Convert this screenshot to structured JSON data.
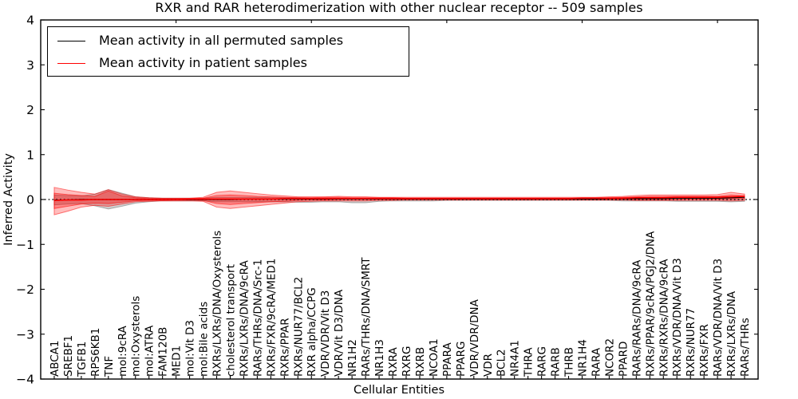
{
  "chart_data": {
    "type": "line",
    "title": "RXR and RAR heterodimerization with other nuclear receptor -- 509 samples",
    "xlabel": "Cellular Entities",
    "ylabel": "Inferred Activity",
    "ylim": [
      -4,
      4
    ],
    "yticks": [
      -4,
      -3,
      -2,
      -1,
      0,
      1,
      2,
      3,
      4
    ],
    "top_axis_ticks": [
      10,
      20,
      30,
      40,
      50
    ],
    "grid": false,
    "legend": {
      "position": "upper left",
      "entries": [
        {
          "label": "Mean activity in all permuted samples",
          "color": "#000000"
        },
        {
          "label": "Mean activity in patient samples",
          "color": "#ff0000"
        }
      ]
    },
    "zero_line": {
      "style": "dotted",
      "color": "#000000",
      "y": 0
    },
    "categories": [
      "ABCA1",
      "SREBF1",
      "TGFB1",
      "RPS6KB1",
      "TNF",
      "mol:9cRA",
      "mol:Oxysterols",
      "mol:ATRA",
      "FAM120B",
      "MED1",
      "mol:Vit D3",
      "mol:Bile acids",
      "RXRs/LXRs/DNA/Oxysterols",
      "cholesterol transport",
      "RXRs/LXRs/DNA/9cRA",
      "RARs/THRs/DNA/Src-1",
      "RXRs/FXR/9cRA/MED1",
      "RXRs/PPAR",
      "RXRs/NUR77/BCL2",
      "RXR alpha/CCPG",
      "VDR/VDR/Vit D3",
      "VDR/Vit D3/DNA",
      "NR1H2",
      "RARs/THRs/DNA/SMRT",
      "NR1H3",
      "RXRA",
      "RXRG",
      "RXRB",
      "NCOA1",
      "PPARA",
      "PPARG",
      "VDR/VDR/DNA",
      "VDR",
      "BCL2",
      "NR4A1",
      "THRA",
      "RARG",
      "RARB",
      "THRB",
      "NR1H4",
      "RARA",
      "NCOR2",
      "PPARD",
      "RARs/RARs/DNA/9cRA",
      "RXRs/PPAR/9cRA/PGJ2/DNA",
      "RXRs/RXRs/DNA/9cRA",
      "RXRs/VDR/DNA/Vit D3",
      "RXRs/NUR77",
      "RXRs/FXR",
      "RARs/VDR/DNA/Vit D3",
      "RXRs/LXRs/DNA",
      "RARs/THRs"
    ],
    "series": [
      {
        "name": "Mean activity in all permuted samples",
        "color": "#000000",
        "values": [
          -0.01,
          -0.01,
          0,
          0,
          0,
          0,
          0,
          0,
          0,
          0,
          0,
          0,
          0,
          0,
          0.01,
          0.01,
          0.01,
          0.01,
          0.01,
          0.01,
          0.01,
          0.01,
          0.01,
          0.01,
          0.01,
          0.01,
          0.01,
          0.01,
          0.01,
          0.01,
          0.01,
          0.01,
          0.01,
          0.01,
          0.01,
          0.01,
          0.01,
          0.01,
          0.01,
          0.01,
          0.01,
          0.02,
          0.02,
          0.02,
          0.02,
          0.02,
          0.03,
          0.03,
          0.03,
          0.03,
          0.04,
          0.05
        ]
      },
      {
        "name": "Mean activity in patient samples",
        "color": "#ff0000",
        "values": [
          -0.02,
          -0.01,
          -0.01,
          0,
          0,
          0,
          0,
          0,
          0,
          0,
          0.01,
          0.01,
          0.01,
          0.01,
          0.01,
          0.01,
          0.01,
          0.02,
          0.02,
          0.02,
          0.02,
          0.02,
          0.02,
          0.02,
          0.02,
          0.02,
          0.02,
          0.02,
          0.02,
          0.02,
          0.02,
          0.02,
          0.02,
          0.02,
          0.02,
          0.02,
          0.02,
          0.02,
          0.02,
          0.03,
          0.03,
          0.03,
          0.03,
          0.04,
          0.04,
          0.04,
          0.05,
          0.05,
          0.05,
          0.05,
          0.06,
          0.07
        ]
      }
    ],
    "bands": [
      {
        "name": "permuted-samples-band",
        "color": "#808080",
        "opacity": 0.38,
        "upper": [
          0.1,
          0.09,
          0.08,
          0.12,
          0.22,
          0.14,
          0.06,
          0.04,
          0.03,
          0.03,
          0.03,
          0.03,
          0.05,
          0.05,
          0.05,
          0.05,
          0.04,
          0.04,
          0.04,
          0.03,
          0.03,
          0.03,
          0.02,
          0.02,
          0.02,
          0.02,
          0.02,
          0.02,
          0.02,
          0.02,
          0.02,
          0.02,
          0.02,
          0.02,
          0.02,
          0.02,
          0.02,
          0.02,
          0.02,
          0.02,
          0.02,
          0.02,
          0.02,
          0.02,
          0.02,
          0.02,
          0.02,
          0.02,
          0.02,
          0.02,
          0.02,
          0.02
        ],
        "lower": [
          -0.12,
          -0.1,
          -0.09,
          -0.14,
          -0.21,
          -0.15,
          -0.08,
          -0.05,
          -0.03,
          -0.03,
          -0.03,
          -0.03,
          -0.05,
          -0.05,
          -0.05,
          -0.05,
          -0.05,
          -0.05,
          -0.06,
          -0.06,
          -0.05,
          -0.05,
          -0.07,
          -0.07,
          -0.04,
          -0.03,
          -0.03,
          -0.03,
          -0.03,
          -0.02,
          -0.02,
          -0.02,
          -0.02,
          -0.02,
          -0.02,
          -0.02,
          -0.02,
          -0.02,
          -0.02,
          -0.02,
          -0.02,
          -0.02,
          -0.03,
          -0.03,
          -0.03,
          -0.03,
          -0.04,
          -0.04,
          -0.04,
          -0.04,
          -0.05,
          -0.04
        ]
      },
      {
        "name": "patient-samples-band-outer",
        "color": "#ff0000",
        "opacity": 0.26,
        "upper": [
          0.27,
          0.21,
          0.16,
          0.12,
          0.22,
          0.12,
          0.06,
          0.04,
          0.03,
          0.03,
          0.03,
          0.05,
          0.16,
          0.19,
          0.16,
          0.13,
          0.1,
          0.08,
          0.06,
          0.06,
          0.06,
          0.07,
          0.06,
          0.06,
          0.05,
          0.05,
          0.05,
          0.05,
          0.05,
          0.05,
          0.05,
          0.05,
          0.05,
          0.05,
          0.05,
          0.05,
          0.05,
          0.05,
          0.05,
          0.05,
          0.05,
          0.06,
          0.07,
          0.09,
          0.1,
          0.1,
          0.1,
          0.1,
          0.1,
          0.11,
          0.16,
          0.12
        ],
        "lower": [
          -0.34,
          -0.26,
          -0.17,
          -0.13,
          -0.15,
          -0.1,
          -0.05,
          -0.04,
          -0.03,
          -0.03,
          -0.03,
          -0.04,
          -0.17,
          -0.2,
          -0.17,
          -0.14,
          -0.11,
          -0.08,
          -0.05,
          -0.04,
          -0.03,
          -0.03,
          -0.03,
          -0.03,
          -0.02,
          -0.02,
          -0.01,
          -0.01,
          -0.01,
          -0.01,
          -0.01,
          -0.01,
          -0.01,
          -0.01,
          -0.01,
          -0.01,
          -0.01,
          -0.01,
          -0.01,
          -0.01,
          -0.01,
          -0.01,
          -0.01,
          -0.02,
          -0.02,
          -0.02,
          -0.02,
          -0.02,
          -0.02,
          -0.02,
          -0.03,
          -0.02
        ]
      },
      {
        "name": "patient-samples-band-inner",
        "color": "#ff0000",
        "opacity": 0.3,
        "upper": [
          0.14,
          0.11,
          0.09,
          0.07,
          0.19,
          0.08,
          0.04,
          0.02,
          0.02,
          0.02,
          0.02,
          0.03,
          0.09,
          0.1,
          0.09,
          0.07,
          0.06,
          0.05,
          0.04,
          0.04,
          0.05,
          0.05,
          0.04,
          0.04,
          0.04,
          0.04,
          0.03,
          0.03,
          0.03,
          0.03,
          0.03,
          0.03,
          0.03,
          0.03,
          0.03,
          0.03,
          0.03,
          0.03,
          0.03,
          0.03,
          0.03,
          0.04,
          0.05,
          0.06,
          0.07,
          0.07,
          0.07,
          0.07,
          0.07,
          0.07,
          0.1,
          0.08
        ],
        "lower": [
          -0.2,
          -0.15,
          -0.1,
          -0.08,
          -0.09,
          -0.06,
          -0.03,
          -0.02,
          -0.02,
          -0.01,
          -0.01,
          -0.02,
          -0.09,
          -0.11,
          -0.09,
          -0.07,
          -0.05,
          -0.04,
          -0.02,
          -0.01,
          -0.01,
          0,
          0,
          0,
          0,
          0,
          0,
          0,
          0,
          0,
          0,
          0,
          0,
          0,
          0,
          0,
          0,
          0,
          0,
          0,
          0,
          0,
          0,
          0,
          0,
          0,
          0,
          0.01,
          0.01,
          0.01,
          0.01,
          0.02
        ]
      }
    ]
  }
}
